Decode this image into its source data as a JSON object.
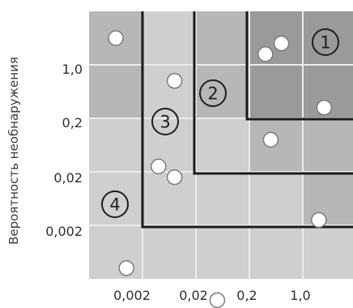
{
  "y_axis": {
    "label": "Вероятность необнаружения",
    "ticks": [
      "1,0",
      "0,2",
      "0,02",
      "0,002"
    ]
  },
  "x_axis": {
    "ticks": [
      "0,002",
      "0,02",
      "0,2",
      "1,0"
    ]
  },
  "zones": [
    {
      "label": "1"
    },
    {
      "label": "2"
    },
    {
      "label": "3"
    },
    {
      "label": "4"
    }
  ],
  "points": [
    {
      "col": 0.5,
      "row": 0.5
    },
    {
      "col": 3.3,
      "row": 0.8
    },
    {
      "col": 3.6,
      "row": 0.6
    },
    {
      "col": 1.6,
      "row": 1.3
    },
    {
      "col": 4.4,
      "row": 1.8
    },
    {
      "col": 3.4,
      "row": 2.4
    },
    {
      "col": 1.3,
      "row": 2.9
    },
    {
      "col": 1.6,
      "row": 3.1
    },
    {
      "col": 4.3,
      "row": 3.9
    },
    {
      "col": 0.7,
      "row": 4.8
    },
    {
      "col": 2.4,
      "row": 5.4
    }
  ],
  "colors": {
    "cell_light": "#cfcfcf",
    "cell_mid": "#b7b7b7",
    "cell_dark": "#9a9a9a",
    "grid_line": "#ececec",
    "boundary": "#1a1a1a",
    "marker_fill": "#ffffff",
    "marker_stroke": "#7a7a7a"
  }
}
